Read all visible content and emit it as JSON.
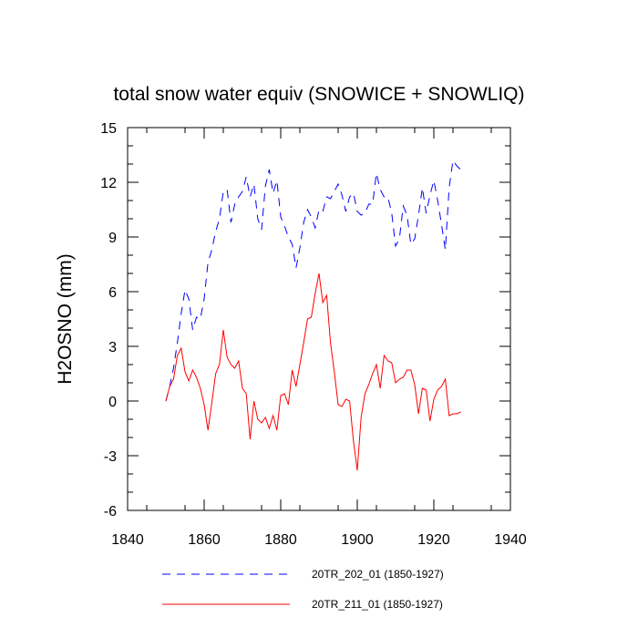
{
  "chart_data": {
    "type": "line",
    "title": "total snow water equiv (SNOWICE + SNOWLIQ)",
    "xlabel": "",
    "ylabel": "H2OSNO  (mm)",
    "xlim": [
      1840,
      1940
    ],
    "ylim": [
      -6,
      15
    ],
    "xticks": [
      1840,
      1860,
      1880,
      1900,
      1920,
      1940
    ],
    "xtick_labels": [
      "1840",
      "1860",
      "1880",
      "1900",
      "1920",
      "1940"
    ],
    "yticks": [
      -6,
      -3,
      0,
      3,
      6,
      9,
      12,
      15
    ],
    "ytick_labels": [
      "-6",
      "-3",
      "0",
      "3",
      "6",
      "9",
      "12",
      "15"
    ],
    "grid": false,
    "legend_position": "bottom",
    "series": [
      {
        "name": "20TR_202_01 (1850-1927)",
        "color": "#0000ff",
        "style": "dashed",
        "x": [
          1850,
          1851,
          1852,
          1853,
          1854,
          1855,
          1856,
          1857,
          1858,
          1859,
          1860,
          1861,
          1862,
          1863,
          1864,
          1865,
          1866,
          1867,
          1868,
          1869,
          1870,
          1871,
          1872,
          1873,
          1874,
          1875,
          1876,
          1877,
          1878,
          1879,
          1880,
          1881,
          1882,
          1883,
          1884,
          1885,
          1886,
          1887,
          1888,
          1889,
          1890,
          1891,
          1892,
          1893,
          1894,
          1895,
          1896,
          1897,
          1898,
          1899,
          1900,
          1901,
          1902,
          1903,
          1904,
          1905,
          1906,
          1907,
          1908,
          1909,
          1910,
          1911,
          1912,
          1913,
          1914,
          1915,
          1916,
          1917,
          1918,
          1919,
          1920,
          1921,
          1922,
          1923,
          1924,
          1925,
          1926,
          1927
        ],
        "values": [
          0.0,
          0.8,
          1.8,
          3.2,
          4.8,
          6.1,
          5.6,
          3.9,
          4.6,
          4.5,
          5.6,
          7.6,
          8.3,
          9.3,
          10.0,
          11.5,
          11.6,
          9.8,
          10.8,
          11.2,
          11.5,
          12.3,
          11.2,
          11.9,
          10.0,
          9.4,
          11.8,
          12.7,
          11.4,
          12.1,
          10.1,
          9.6,
          9.0,
          8.6,
          7.3,
          8.4,
          9.8,
          10.5,
          10.1,
          9.5,
          10.5,
          10.4,
          11.2,
          11.1,
          11.5,
          11.9,
          11.3,
          10.4,
          11.2,
          11.4,
          10.4,
          10.2,
          10.3,
          10.8,
          10.8,
          12.5,
          11.6,
          11.2,
          11.2,
          10.3,
          8.5,
          8.9,
          10.7,
          10.2,
          8.6,
          8.9,
          10.2,
          11.7,
          10.3,
          11.3,
          12.1,
          11.0,
          9.7,
          8.3,
          11.7,
          13.2,
          12.9,
          12.7
        ]
      },
      {
        "name": "20TR_211_01 (1850-1927)",
        "color": "#ff0000",
        "style": "solid",
        "x": [
          1850,
          1851,
          1852,
          1853,
          1854,
          1855,
          1856,
          1857,
          1858,
          1859,
          1860,
          1861,
          1862,
          1863,
          1864,
          1865,
          1866,
          1867,
          1868,
          1869,
          1870,
          1871,
          1872,
          1873,
          1874,
          1875,
          1876,
          1877,
          1878,
          1879,
          1880,
          1881,
          1882,
          1883,
          1884,
          1885,
          1886,
          1887,
          1888,
          1889,
          1890,
          1891,
          1892,
          1893,
          1894,
          1895,
          1896,
          1897,
          1898,
          1899,
          1900,
          1901,
          1902,
          1903,
          1904,
          1905,
          1906,
          1907,
          1908,
          1909,
          1910,
          1911,
          1912,
          1913,
          1914,
          1915,
          1916,
          1917,
          1918,
          1919,
          1920,
          1921,
          1922,
          1923,
          1924,
          1925,
          1926,
          1927
        ],
        "values": [
          0.0,
          0.8,
          1.2,
          2.5,
          2.9,
          1.6,
          1.1,
          1.7,
          1.3,
          0.7,
          -0.2,
          -1.6,
          -0.1,
          1.5,
          2.0,
          3.9,
          2.4,
          2.0,
          1.8,
          2.2,
          0.7,
          0.4,
          -2.1,
          0.0,
          -1.0,
          -1.2,
          -0.9,
          -1.5,
          -0.8,
          -1.6,
          0.3,
          0.4,
          -0.2,
          1.7,
          0.8,
          2.0,
          3.2,
          4.5,
          4.6,
          5.9,
          7.0,
          5.4,
          5.8,
          3.2,
          1.6,
          -0.2,
          -0.3,
          0.1,
          0.0,
          -2.2,
          -3.8,
          -0.9,
          0.4,
          0.9,
          1.5,
          2.0,
          0.7,
          2.5,
          2.2,
          2.1,
          1.0,
          1.2,
          1.3,
          1.7,
          1.7,
          0.9,
          -0.7,
          0.7,
          0.6,
          -1.1,
          0.1,
          0.6,
          0.8,
          1.2,
          -0.8,
          -0.7,
          -0.7,
          -0.6
        ]
      }
    ]
  }
}
